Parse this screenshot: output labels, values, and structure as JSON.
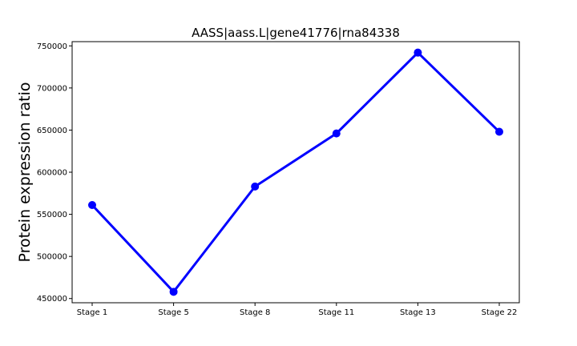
{
  "chart_data": {
    "type": "line",
    "title": "AASS|aass.L|gene41776|rna84338",
    "xlabel": "",
    "ylabel": "Protein expression ratio",
    "categories": [
      "Stage 1",
      "Stage 5",
      "Stage 8",
      "Stage 11",
      "Stage 13",
      "Stage 22"
    ],
    "series": [
      {
        "values": [
          561000,
          458000,
          583000,
          646000,
          742000,
          648000
        ]
      }
    ],
    "ylim": [
      445000,
      755000
    ],
    "yticks": [
      450000,
      500000,
      550000,
      600000,
      650000,
      700000,
      750000
    ],
    "ytick_labels": [
      "450000",
      "500000",
      "550000",
      "600000",
      "650000",
      "700000",
      "750000"
    ],
    "grid": false,
    "color": "#0000ff"
  }
}
